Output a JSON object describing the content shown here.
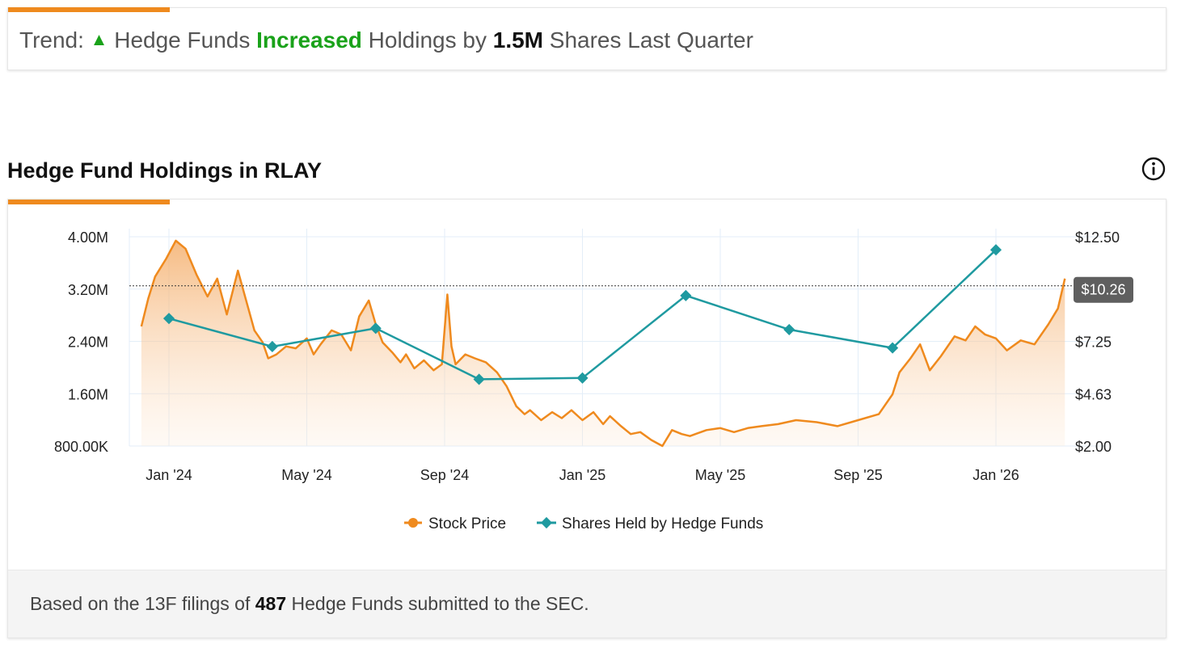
{
  "trend": {
    "prefix": "Trend:",
    "arrow": "▲",
    "subject": "Hedge Funds",
    "direction": "Increased",
    "middle": "Holdings by",
    "amount": "1.5M",
    "suffix": "Shares Last Quarter"
  },
  "section_title": "Hedge Fund Holdings in RLAY",
  "info_icon": "info-icon",
  "footer": {
    "prefix": "Based on the 13F filings of",
    "count": "487",
    "suffix": "Hedge Funds submitted to the SEC."
  },
  "colors": {
    "accent": "#ef8a1e",
    "price_line": "#ef8a1e",
    "holdings_line": "#1f9aa0",
    "increase": "#1aa21a"
  },
  "chart_data": {
    "type": "line",
    "title": "Hedge Fund Holdings in RLAY",
    "x_ticks": [
      "Jan '24",
      "May '24",
      "Sep '24",
      "Jan '25",
      "May '25",
      "Sep '25",
      "Jan '26"
    ],
    "left_axis": {
      "ticks": [
        "800.00K",
        "1.60M",
        "2.40M",
        "3.20M",
        "4.00M"
      ],
      "values": [
        800000,
        1600000,
        2400000,
        3200000,
        4000000
      ],
      "range": [
        800000,
        4000000
      ]
    },
    "right_axis": {
      "ticks": [
        "$2.00",
        "$4.63",
        "$7.25",
        "$12.50"
      ],
      "values": [
        2.0,
        4.63,
        7.25,
        12.5
      ],
      "range": [
        2.0,
        12.5
      ]
    },
    "current_price_label": "$10.26",
    "current_price": 10.26,
    "current_price_ref_holdings": 3250000,
    "legend": [
      "Stock Price",
      "Shares Held by Hedge Funds"
    ],
    "series": [
      {
        "name": "Shares Held by Hedge Funds",
        "axis": "left",
        "x": [
          0.0,
          0.75,
          1.5,
          2.25,
          3.0,
          3.75,
          4.5,
          5.25,
          6.0
        ],
        "values": [
          2750000,
          2320000,
          2600000,
          1820000,
          1840000,
          3100000,
          2580000,
          2300000,
          3800000
        ]
      },
      {
        "name": "Stock Price",
        "axis": "right",
        "x": [
          -0.2,
          -0.15,
          -0.1,
          -0.02,
          0.05,
          0.12,
          0.2,
          0.28,
          0.35,
          0.42,
          0.5,
          0.56,
          0.62,
          0.68,
          0.72,
          0.78,
          0.85,
          0.92,
          1.0,
          1.05,
          1.1,
          1.18,
          1.25,
          1.32,
          1.38,
          1.45,
          1.5,
          1.55,
          1.62,
          1.68,
          1.72,
          1.78,
          1.85,
          1.92,
          1.98,
          2.02,
          2.05,
          2.08,
          2.15,
          2.22,
          2.3,
          2.38,
          2.45,
          2.52,
          2.58,
          2.62,
          2.7,
          2.78,
          2.85,
          2.92,
          3.0,
          3.08,
          3.15,
          3.2,
          3.28,
          3.35,
          3.42,
          3.5,
          3.58,
          3.65,
          3.72,
          3.78,
          3.82,
          3.9,
          4.0,
          4.1,
          4.2,
          4.3,
          4.42,
          4.55,
          4.7,
          4.85,
          5.0,
          5.15,
          5.25,
          5.3,
          5.38,
          5.45,
          5.52,
          5.6,
          5.7,
          5.78,
          5.85,
          5.92,
          6.0,
          6.08,
          6.18,
          6.28,
          6.38,
          6.45,
          6.5
        ],
        "values": [
          8.0,
          9.4,
          10.5,
          11.4,
          12.3,
          11.9,
          10.6,
          9.5,
          10.4,
          8.6,
          10.8,
          9.3,
          7.8,
          7.2,
          6.4,
          6.6,
          7.0,
          6.9,
          7.4,
          6.6,
          7.1,
          7.8,
          7.6,
          6.8,
          8.5,
          9.3,
          8.1,
          7.2,
          6.7,
          6.2,
          6.6,
          5.9,
          6.3,
          5.8,
          6.1,
          9.6,
          7.0,
          6.1,
          6.6,
          6.4,
          6.2,
          5.7,
          5.0,
          4.0,
          3.6,
          3.8,
          3.3,
          3.7,
          3.4,
          3.8,
          3.3,
          3.7,
          3.1,
          3.5,
          3.0,
          2.6,
          2.7,
          2.3,
          2.0,
          2.8,
          2.6,
          2.5,
          2.6,
          2.8,
          2.9,
          2.7,
          2.9,
          3.0,
          3.1,
          3.3,
          3.2,
          3.0,
          3.3,
          3.6,
          4.6,
          5.7,
          6.4,
          7.1,
          5.8,
          6.5,
          7.5,
          7.3,
          8.0,
          7.6,
          7.4,
          6.8,
          7.3,
          7.1,
          8.1,
          8.9,
          10.4
        ]
      }
    ]
  }
}
